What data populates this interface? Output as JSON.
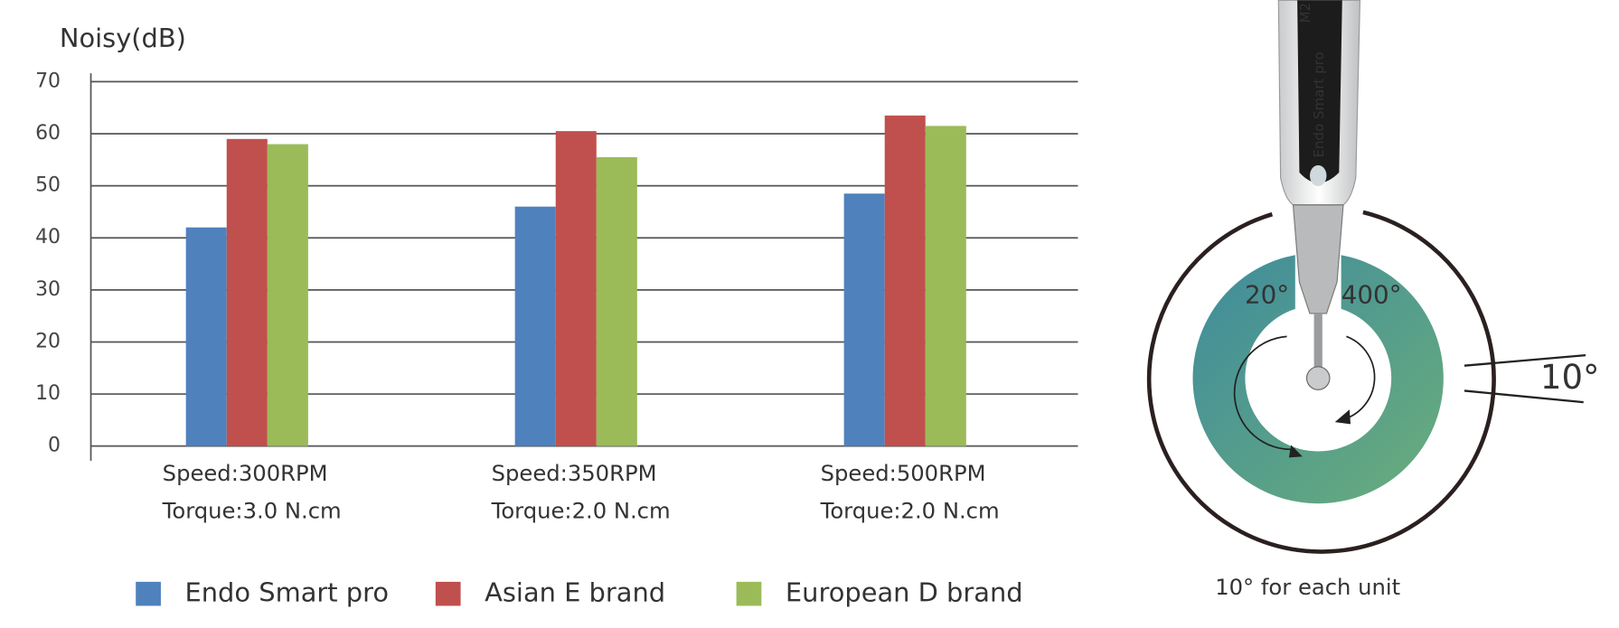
{
  "chart_data": {
    "type": "bar",
    "y_label": "Noisy(dB)",
    "categories": [
      [
        "Speed:300RPM",
        "Torque:3.0 N.cm"
      ],
      [
        "Speed:350RPM",
        "Torque:2.0 N.cm"
      ],
      [
        "Speed:500RPM",
        "Torque:2.0 N.cm"
      ]
    ],
    "series": [
      {
        "name": "Endo Smart pro",
        "color": "#4f81bd",
        "values": [
          42,
          46,
          48.5
        ]
      },
      {
        "name": "Asian E brand",
        "color": "#c0504d",
        "values": [
          59,
          60.5,
          63.5
        ]
      },
      {
        "name": "European D brand",
        "color": "#9bbb59",
        "values": [
          58,
          55.5,
          61.5
        ]
      }
    ],
    "ylim": [
      0,
      70
    ],
    "yticks": [
      0,
      10,
      20,
      30,
      40,
      50,
      60,
      70
    ],
    "grid": true,
    "legend": "bottom"
  },
  "illustration": {
    "device_label": "Endo Smart pro",
    "device_model": "M2",
    "left_angle": "20°",
    "right_angle": "400°",
    "step_angle": "10°",
    "caption": "10°   for each unit"
  }
}
